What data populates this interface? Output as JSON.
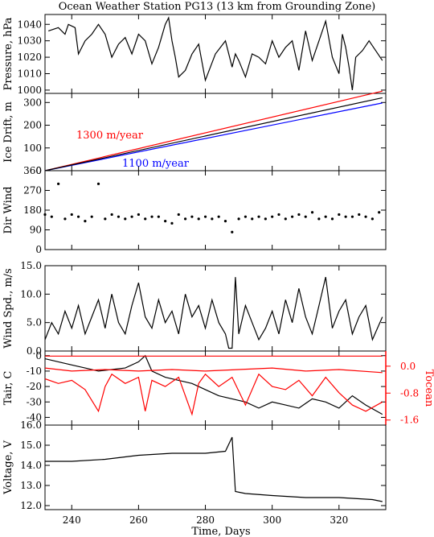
{
  "title": "Ocean Weather Station PG13 (13 km from Grounding Zone)",
  "chart_data": {
    "type": "line",
    "xlabel": "Time, Days",
    "xlim": [
      232,
      334
    ],
    "xticks": [
      240,
      260,
      280,
      300,
      320
    ],
    "panels": [
      {
        "id": "pressure",
        "ylabel": "Pressure, hPa",
        "ylim": [
          998,
          1046
        ],
        "yticks": [
          1000,
          1010,
          1020,
          1030,
          1040
        ],
        "series": [
          {
            "color": "#000000",
            "x": [
              233,
              236,
              238,
              239,
              241,
              242,
              244,
              246,
              248,
              250,
              252,
              254,
              256,
              258,
              260,
              262,
              264,
              266,
              268,
              269,
              270,
              271,
              272,
              274,
              276,
              278,
              280,
              283,
              286,
              288,
              289,
              290,
              292,
              294,
              296,
              298,
              300,
              302,
              304,
              306,
              308,
              310,
              312,
              314,
              316,
              318,
              320,
              321,
              322,
              323,
              324,
              325,
              327,
              329,
              331,
              333
            ],
            "y": [
              1036,
              1038,
              1034,
              1040,
              1038,
              1022,
              1030,
              1034,
              1040,
              1034,
              1020,
              1028,
              1032,
              1022,
              1034,
              1030,
              1016,
              1026,
              1040,
              1044,
              1030,
              1020,
              1008,
              1012,
              1022,
              1028,
              1006,
              1022,
              1030,
              1014,
              1022,
              1018,
              1008,
              1022,
              1020,
              1016,
              1030,
              1020,
              1026,
              1030,
              1012,
              1036,
              1018,
              1030,
              1042,
              1020,
              1010,
              1034,
              1026,
              1014,
              1000,
              1020,
              1024,
              1030,
              1024,
              1018
            ]
          }
        ]
      },
      {
        "id": "drift",
        "ylabel": "Ice Drift, m",
        "ylim": [
          0,
          340
        ],
        "yticks": [
          0,
          100,
          200,
          300
        ],
        "annotations": [
          "1300 m/year",
          "1100 m/year"
        ],
        "series": [
          {
            "name": "1300 m/year",
            "color": "#ff0000",
            "x": [
              232,
              333
            ],
            "y": [
              0,
              350
            ]
          },
          {
            "name": "1100 m/year",
            "color": "#0000ff",
            "x": [
              232,
              333
            ],
            "y": [
              0,
              298
            ]
          },
          {
            "color": "#000000",
            "x": [
              232,
              333
            ],
            "y": [
              0,
              321
            ]
          }
        ]
      },
      {
        "id": "dirwind",
        "ylabel": "Dir Wind",
        "ylim": [
          0,
          360
        ],
        "yticks": [
          0,
          90,
          180,
          270,
          360
        ],
        "series": [
          {
            "color": "#000000",
            "style": "scatter",
            "x": [
              232,
              234,
              236,
              238,
              240,
              242,
              244,
              246,
              248,
              250,
              252,
              254,
              256,
              258,
              260,
              262,
              264,
              266,
              268,
              270,
              272,
              274,
              276,
              278,
              280,
              282,
              284,
              286,
              288,
              290,
              292,
              294,
              296,
              298,
              300,
              302,
              304,
              306,
              308,
              310,
              312,
              314,
              316,
              318,
              320,
              322,
              324,
              326,
              328,
              330,
              332
            ],
            "y": [
              160,
              150,
              300,
              140,
              160,
              150,
              130,
              150,
              300,
              140,
              160,
              150,
              140,
              150,
              160,
              140,
              150,
              150,
              130,
              120,
              160,
              140,
              150,
              140,
              150,
              140,
              150,
              130,
              80,
              140,
              150,
              140,
              150,
              140,
              150,
              160,
              140,
              150,
              160,
              150,
              170,
              140,
              150,
              140,
              160,
              150,
              150,
              160,
              150,
              140,
              170
            ]
          }
        ]
      },
      {
        "id": "windspd",
        "ylabel": "Wind Spd., m/s",
        "ylim": [
          0,
          15
        ],
        "yticks": [
          0.0,
          5.0,
          10.0,
          15.0
        ],
        "series": [
          {
            "color": "#000000",
            "x": [
              232,
              234,
              236,
              238,
              240,
              242,
              244,
              246,
              248,
              250,
              252,
              254,
              256,
              258,
              260,
              262,
              264,
              266,
              268,
              270,
              272,
              274,
              276,
              278,
              280,
              282,
              284,
              286,
              287,
              288,
              289,
              290,
              292,
              294,
              296,
              298,
              300,
              302,
              304,
              306,
              308,
              310,
              312,
              314,
              316,
              318,
              320,
              322,
              324,
              326,
              328,
              330,
              333
            ],
            "y": [
              2,
              5,
              3,
              7,
              4,
              8,
              3,
              6,
              9,
              4,
              10,
              5,
              3,
              8,
              12,
              6,
              4,
              9,
              5,
              7,
              3,
              10,
              6,
              8,
              4,
              9,
              5,
              3,
              0.5,
              0.5,
              13,
              3,
              8,
              5,
              2,
              4,
              7,
              3,
              9,
              5,
              11,
              6,
              3,
              8,
              13,
              4,
              7,
              9,
              3,
              6,
              8,
              2,
              6
            ]
          }
        ]
      },
      {
        "id": "tair",
        "ylabel": "Tair, C",
        "ylim": [
          -45,
          3
        ],
        "yticks": [
          0,
          -10,
          -20,
          -30,
          -40
        ],
        "y2label": "Tocean",
        "y2lim": [
          -1.75,
          0.45
        ],
        "y2ticks": [
          0.0,
          -0.8,
          -1.6
        ],
        "series": [
          {
            "name": "Tair",
            "color": "#000000",
            "x": [
              232,
              236,
              240,
              244,
              248,
              252,
              256,
              260,
              262,
              264,
              268,
              272,
              276,
              280,
              284,
              288,
              292,
              296,
              300,
              304,
              308,
              312,
              316,
              320,
              324,
              328,
              333
            ],
            "y": [
              -2,
              -4,
              -6,
              -8,
              -10,
              -9,
              -8,
              -4,
              0,
              -10,
              -14,
              -16,
              -18,
              -22,
              -26,
              -28,
              -30,
              -34,
              -30,
              -32,
              -34,
              -28,
              -30,
              -34,
              -26,
              -32,
              -38
            ]
          },
          {
            "name": "Tocean",
            "color": "#ff0000",
            "axis": "right",
            "x": [
              232,
              240,
              250,
              260,
              270,
              280,
              290,
              300,
              310,
              320,
              333
            ],
            "y": [
              0.3,
              0.3,
              0.3,
              0.3,
              0.3,
              0.3,
              0.3,
              0.3,
              0.3,
              0.3,
              0.3
            ]
          },
          {
            "color": "#ff0000",
            "x": [
              232,
              236,
              240,
              244,
              248,
              250,
              252,
              256,
              260,
              262,
              264,
              268,
              272,
              276,
              278,
              280,
              284,
              288,
              292,
              296,
              300,
              304,
              308,
              312,
              316,
              320,
              324,
              328,
              333
            ],
            "y": [
              -15,
              -18,
              -16,
              -22,
              -36,
              -20,
              -12,
              -18,
              -14,
              -36,
              -16,
              -20,
              -14,
              -38,
              -18,
              -12,
              -20,
              -14,
              -32,
              -12,
              -20,
              -22,
              -16,
              -26,
              -14,
              -24,
              -32,
              -36,
              -30
            ]
          },
          {
            "color": "#ff0000",
            "x": [
              232,
              240,
              250,
              260,
              270,
              280,
              290,
              300,
              310,
              320,
              333
            ],
            "y": [
              -8,
              -10,
              -9,
              -10,
              -9,
              -10,
              -9,
              -8,
              -10,
              -9,
              -11
            ]
          }
        ]
      },
      {
        "id": "voltage",
        "ylabel": "Voltage, V",
        "ylim": [
          11.8,
          16.0
        ],
        "yticks": [
          12.0,
          13.0,
          14.0,
          15.0,
          16.0
        ],
        "series": [
          {
            "color": "#000000",
            "x": [
              232,
              240,
              250,
              260,
              270,
              280,
              286,
              288,
              289,
              292,
              300,
              310,
              320,
              330,
              333
            ],
            "y": [
              14.2,
              14.2,
              14.3,
              14.5,
              14.6,
              14.6,
              14.7,
              15.4,
              12.7,
              12.6,
              12.5,
              12.4,
              12.4,
              12.3,
              12.2
            ]
          }
        ]
      }
    ]
  }
}
